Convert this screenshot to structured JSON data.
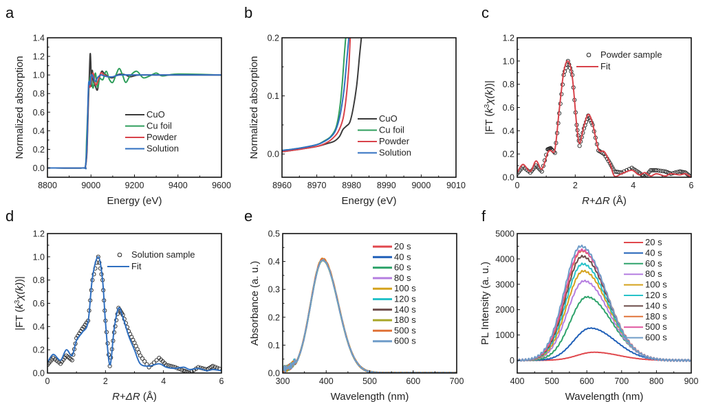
{
  "chart_data": [
    {
      "panel": "a",
      "type": "line",
      "xlabel": "Energy (eV)",
      "ylabel": "Normalized absorption",
      "xlim": [
        8800,
        9600
      ],
      "ylim": [
        -0.1,
        1.4
      ],
      "xticks": [
        8800,
        9000,
        9200,
        9400,
        9600
      ],
      "yticks": [
        0.0,
        0.2,
        0.4,
        0.6,
        0.8,
        1.0,
        1.2,
        1.4
      ],
      "ytick_labels": [
        "0.0",
        "0.2",
        "0.4",
        "0.6",
        "0.8",
        "1.0",
        "1.2",
        "1.4"
      ],
      "legend_position": "bottom-right",
      "series": [
        {
          "name": "CuO",
          "color": "#3a3a3a",
          "x": [
            8800,
            8960,
            8975,
            8982,
            8988,
            8992,
            8996,
            8999,
            9002,
            9006,
            9012,
            9020,
            9030,
            9040,
            9050,
            9060,
            9080,
            9100,
            9120,
            9140,
            9160,
            9180,
            9220,
            9300,
            9400,
            9600
          ],
          "y": [
            0.0,
            0.0,
            0.02,
            0.2,
            0.7,
            0.95,
            1.22,
            1.15,
            0.88,
            1.05,
            0.92,
            0.88,
            0.84,
            0.98,
            1.04,
            1.02,
            0.98,
            0.97,
            1.0,
            1.01,
            1.0,
            0.98,
            1.0,
            1.0,
            1.0,
            1.0
          ]
        },
        {
          "name": "Cu foil",
          "color": "#2e9e5b",
          "x": [
            8800,
            8960,
            8975,
            8980,
            8985,
            8990,
            8995,
            9000,
            9010,
            9020,
            9030,
            9040,
            9055,
            9070,
            9085,
            9100,
            9115,
            9130,
            9145,
            9160,
            9180,
            9210,
            9240,
            9270,
            9300,
            9330,
            9400,
            9600
          ],
          "y": [
            0.0,
            0.0,
            0.02,
            0.3,
            0.6,
            0.85,
            0.95,
            0.98,
            0.86,
            1.02,
            0.87,
            0.96,
            0.95,
            1.04,
            0.95,
            0.92,
            1.0,
            1.07,
            1.0,
            0.92,
            0.99,
            1.04,
            0.97,
            0.99,
            1.02,
            0.99,
            1.01,
            1.0
          ]
        },
        {
          "name": "Powder",
          "color": "#d8424a",
          "x": [
            8800,
            8960,
            8975,
            8982,
            8988,
            8992,
            8996,
            9002,
            9010,
            9020,
            9030,
            9045,
            9060,
            9080,
            9100,
            9130,
            9200,
            9400,
            9600
          ],
          "y": [
            0.0,
            0.0,
            0.02,
            0.25,
            0.8,
            0.9,
            0.87,
            0.95,
            1.02,
            0.9,
            0.92,
            1.02,
            1.0,
            0.98,
            0.98,
            1.0,
            1.0,
            1.0,
            1.0
          ]
        },
        {
          "name": "Solution",
          "color": "#2f6fc0",
          "x": [
            8800,
            8960,
            8975,
            8982,
            8988,
            8992,
            8996,
            9002,
            9010,
            9020,
            9030,
            9045,
            9060,
            9080,
            9100,
            9130,
            9200,
            9400,
            9600
          ],
          "y": [
            0.0,
            0.0,
            0.02,
            0.3,
            0.85,
            0.93,
            0.9,
            1.0,
            0.98,
            0.93,
            0.97,
            1.0,
            0.99,
            0.98,
            0.98,
            1.0,
            1.0,
            1.0,
            1.0
          ]
        }
      ]
    },
    {
      "panel": "b",
      "type": "line",
      "xlabel": "Energy (eV)",
      "ylabel": "Normalized absorption",
      "xlim": [
        8960,
        9010
      ],
      "ylim": [
        -0.04,
        0.2
      ],
      "xticks": [
        8960,
        8970,
        8980,
        8990,
        9000,
        9010
      ],
      "yticks": [
        0.0,
        0.1,
        0.2
      ],
      "ytick_labels": [
        "0.0",
        "0.1",
        "0.2"
      ],
      "legend_position": "bottom-right",
      "series": [
        {
          "name": "CuO",
          "color": "#3a3a3a",
          "x": [
            8960,
            8965,
            8970,
            8973,
            8975,
            8976.5,
            8977.5,
            8978.5,
            8979.5,
            8980.5,
            8981.5,
            8982.3,
            8982.8
          ],
          "y": [
            0.004,
            0.008,
            0.013,
            0.018,
            0.022,
            0.03,
            0.042,
            0.048,
            0.055,
            0.08,
            0.12,
            0.17,
            0.2
          ]
        },
        {
          "name": "Cu foil",
          "color": "#2e9e5b",
          "x": [
            8960,
            8965,
            8970,
            8972,
            8974,
            8975.5,
            8976.5,
            8977.3,
            8977.9,
            8978.3
          ],
          "y": [
            0.006,
            0.01,
            0.016,
            0.022,
            0.03,
            0.045,
            0.075,
            0.12,
            0.17,
            0.2
          ]
        },
        {
          "name": "Powder",
          "color": "#d8424a",
          "x": [
            8960,
            8965,
            8970,
            8972,
            8974,
            8976,
            8977.5,
            8978.5,
            8979.2,
            8979.6
          ],
          "y": [
            0.004,
            0.008,
            0.013,
            0.017,
            0.024,
            0.037,
            0.06,
            0.1,
            0.15,
            0.2
          ]
        },
        {
          "name": "Solution",
          "color": "#2f6fc0",
          "x": [
            8960,
            8965,
            8970,
            8972,
            8974,
            8975.5,
            8976.8,
            8977.8,
            8978.6,
            8979.2
          ],
          "y": [
            0.006,
            0.01,
            0.016,
            0.021,
            0.029,
            0.042,
            0.07,
            0.11,
            0.16,
            0.2
          ]
        }
      ]
    },
    {
      "panel": "c",
      "type": "line",
      "xlabel": "R+ΔR (Å)",
      "ylabel": "|FT (k³χ(k))|",
      "xlim": [
        0,
        6
      ],
      "ylim": [
        0,
        1.2
      ],
      "xticks": [
        0,
        2,
        4,
        6
      ],
      "yticks": [
        0.0,
        0.2,
        0.4,
        0.6,
        0.8,
        1.0,
        1.2
      ],
      "ytick_labels": [
        "0.0",
        "0.2",
        "0.4",
        "0.6",
        "0.8",
        "1.0",
        "1.2"
      ],
      "legend_position": "top-right",
      "series": [
        {
          "name": "Powder sample",
          "style": "markers",
          "color": "#222222",
          "x": [
            0,
            0.2,
            0.45,
            0.65,
            0.85,
            1.05,
            1.15,
            1.3,
            1.45,
            1.6,
            1.75,
            1.9,
            2.05,
            2.15,
            2.3,
            2.45,
            2.6,
            2.8,
            3.0,
            3.2,
            3.35,
            3.6,
            3.95,
            4.2,
            4.4,
            4.6,
            4.8,
            5.1,
            5.3,
            5.6,
            5.8,
            6.0
          ],
          "y": [
            0.03,
            0.09,
            0.04,
            0.1,
            0.05,
            0.24,
            0.25,
            0.21,
            0.55,
            0.88,
            1.0,
            0.88,
            0.45,
            0.27,
            0.42,
            0.53,
            0.45,
            0.23,
            0.2,
            0.12,
            0.05,
            0.04,
            0.08,
            0.04,
            0.0,
            0.06,
            0.06,
            0.05,
            0.03,
            0.05,
            0.04,
            0.0
          ]
        },
        {
          "name": "Fit",
          "style": "line",
          "color": "#d8424a",
          "x": [
            0,
            0.2,
            0.45,
            0.65,
            0.85,
            1.05,
            1.15,
            1.3,
            1.45,
            1.6,
            1.75,
            1.9,
            2.05,
            2.15,
            2.3,
            2.45,
            2.6,
            2.8,
            3.0,
            3.2,
            3.35,
            3.6,
            3.95,
            4.2,
            4.4,
            4.6,
            4.8,
            5.1,
            5.3,
            5.6,
            5.8,
            6.0
          ],
          "y": [
            0.04,
            0.11,
            0.05,
            0.14,
            0.07,
            0.21,
            0.23,
            0.24,
            0.58,
            0.9,
            1.0,
            0.86,
            0.45,
            0.29,
            0.44,
            0.54,
            0.46,
            0.24,
            0.22,
            0.12,
            0.01,
            0.03,
            0.06,
            0.02,
            0.04,
            0.01,
            0.03,
            0.01,
            0.03,
            0.02,
            0.03,
            0.0
          ]
        }
      ]
    },
    {
      "panel": "d",
      "type": "line",
      "xlabel": "R+ΔR (Å)",
      "ylabel": "|FT (k³χ(k))|",
      "xlim": [
        0,
        6
      ],
      "ylim": [
        0,
        1.2
      ],
      "xticks": [
        0,
        2,
        4,
        6
      ],
      "yticks": [
        0.0,
        0.2,
        0.4,
        0.6,
        0.8,
        1.0,
        1.2
      ],
      "ytick_labels": [
        "0.0",
        "0.2",
        "0.4",
        "0.6",
        "0.8",
        "1.0",
        "1.2"
      ],
      "legend_position": "top-right",
      "series": [
        {
          "name": "Solution sample",
          "style": "markers",
          "color": "#222222",
          "x": [
            0,
            0.2,
            0.45,
            0.65,
            0.85,
            1.0,
            1.2,
            1.4,
            1.55,
            1.75,
            1.9,
            2.0,
            2.15,
            2.3,
            2.45,
            2.6,
            2.8,
            3.0,
            3.2,
            3.5,
            3.85,
            4.1,
            4.4,
            4.7,
            4.9,
            5.2,
            5.5,
            5.7,
            6.0
          ],
          "y": [
            0.07,
            0.13,
            0.08,
            0.15,
            0.11,
            0.3,
            0.38,
            0.45,
            0.8,
            1.0,
            0.8,
            0.45,
            0.06,
            0.35,
            0.56,
            0.5,
            0.36,
            0.26,
            0.15,
            0.05,
            0.13,
            0.07,
            0.05,
            0.02,
            0.0,
            0.05,
            0.03,
            0.06,
            0.03
          ]
        },
        {
          "name": "Fit",
          "style": "line",
          "color": "#2f6fc0",
          "x": [
            0,
            0.2,
            0.45,
            0.65,
            0.85,
            1.0,
            1.2,
            1.4,
            1.55,
            1.75,
            1.9,
            2.0,
            2.15,
            2.3,
            2.45,
            2.6,
            2.8,
            3.0,
            3.2,
            3.5,
            3.85,
            4.1,
            4.4,
            4.7,
            4.9,
            5.2,
            5.5,
            5.7,
            6.0
          ],
          "y": [
            0.09,
            0.16,
            0.11,
            0.2,
            0.15,
            0.28,
            0.35,
            0.44,
            0.82,
            1.0,
            0.8,
            0.44,
            0.07,
            0.38,
            0.56,
            0.48,
            0.32,
            0.2,
            0.08,
            0.06,
            0.08,
            0.05,
            0.04,
            0.05,
            0.03,
            0.04,
            0.02,
            0.03,
            0.02
          ]
        }
      ]
    },
    {
      "panel": "e",
      "type": "line",
      "xlabel": "Wavelength (nm)",
      "ylabel": "Absorbance (a. u.)",
      "xlim": [
        300,
        700
      ],
      "ylim": [
        0,
        0.5
      ],
      "xticks": [
        300,
        400,
        500,
        600,
        700
      ],
      "yticks": [
        0.0,
        0.1,
        0.2,
        0.3,
        0.4,
        0.5
      ],
      "ytick_labels": [
        "0.0",
        "0.1",
        "0.2",
        "0.3",
        "0.4",
        "0.5"
      ],
      "legend_position": "top-right",
      "peak_x": 392,
      "series": [
        {
          "name": "20 s",
          "color": "#e0474c",
          "peak": 0.405
        },
        {
          "name": "40 s",
          "color": "#1f5fb8",
          "peak": 0.405
        },
        {
          "name": "60 s",
          "color": "#2ea36b",
          "peak": 0.405
        },
        {
          "name": "80 s",
          "color": "#b57ee0",
          "peak": 0.405
        },
        {
          "name": "100 s",
          "color": "#d4a21c",
          "peak": 0.41
        },
        {
          "name": "120 s",
          "color": "#26c2c9",
          "peak": 0.405
        },
        {
          "name": "140 s",
          "color": "#6b4a48",
          "peak": 0.405
        },
        {
          "name": "180 s",
          "color": "#a8a628",
          "peak": 0.405
        },
        {
          "name": "500 s",
          "color": "#e0743a",
          "peak": 0.41
        },
        {
          "name": "600 s",
          "color": "#6f9cc8",
          "peak": 0.405
        }
      ]
    },
    {
      "panel": "f",
      "type": "line",
      "xlabel": "Wavelength (nm)",
      "ylabel": "PL Intensity (a. u.)",
      "xlim": [
        400,
        900
      ],
      "ylim": [
        -500,
        5000
      ],
      "xticks": [
        400,
        500,
        600,
        700,
        800,
        900
      ],
      "yticks": [
        0,
        1000,
        2000,
        3000,
        4000,
        5000
      ],
      "ytick_labels": [
        "0",
        "1000",
        "2000",
        "3000",
        "4000",
        "5000"
      ],
      "legend_position": "top-right",
      "series": [
        {
          "name": "20 s",
          "color": "#e0474c",
          "peak_x": 620,
          "peak": 320
        },
        {
          "name": "40 s",
          "color": "#1f5fb8",
          "peak_x": 610,
          "peak": 1270
        },
        {
          "name": "60 s",
          "color": "#2ea36b",
          "peak_x": 600,
          "peak": 2500
        },
        {
          "name": "80 s",
          "color": "#b57ee0",
          "peak_x": 592,
          "peak": 3130
        },
        {
          "name": "100 s",
          "color": "#d4a21c",
          "peak_x": 590,
          "peak": 3520
        },
        {
          "name": "120 s",
          "color": "#26c2c9",
          "peak_x": 588,
          "peak": 3800
        },
        {
          "name": "140 s",
          "color": "#6b4a48",
          "peak_x": 587,
          "peak": 4100
        },
        {
          "name": "180 s",
          "color": "#e0743a",
          "peak_x": 586,
          "peak": 4320
        },
        {
          "name": "500 s",
          "color": "#e0559e",
          "peak_x": 585,
          "peak": 4350
        },
        {
          "name": "600 s",
          "color": "#6f9cc8",
          "peak_x": 583,
          "peak": 4500
        }
      ]
    }
  ],
  "panel_letters": [
    "a",
    "b",
    "c",
    "d",
    "e",
    "f"
  ]
}
